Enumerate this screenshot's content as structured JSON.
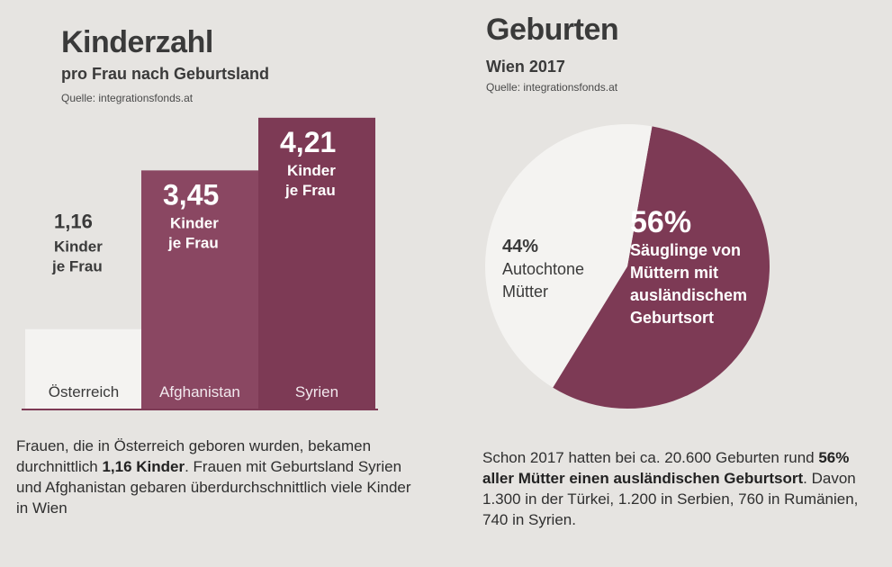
{
  "left": {
    "title": "Kinderzahl",
    "subtitle": "pro Frau nach Geburtsland",
    "source": "Quelle: integrationsfonds.at",
    "note": {
      "part1": "Frauen, die in Österreich geboren wurden, bekamen durchnittlich ",
      "bold1": "1,16 Kinder",
      "part2": ". Frauen mit Geburtsland Syrien und Afghanistan gebaren überdurchschnittlich viele Kinder in Wien"
    }
  },
  "right": {
    "title": "Geburten",
    "subtitle": "Wien 2017",
    "source": "Quelle: integrationsfonds.at",
    "note": {
      "part1": "Schon 2017 hatten bei ca. 20.600 Geburten rund ",
      "bold1": "56% aller Mütter einen ausländischen Geburtsort",
      "part2": ". Davon 1.300 in der Türkei, 1.200 in Serbien, 760 in Rumänien, 740 in Syrien."
    }
  },
  "chart_data": [
    {
      "type": "bar",
      "title": "Kinderzahl",
      "subtitle": "pro Frau nach Geburtsland",
      "categories": [
        "Österreich",
        "Afghanistan",
        "Syrien"
      ],
      "values": [
        1.16,
        3.45,
        4.21
      ],
      "value_labels": [
        "1,16",
        "3,45",
        "4,21"
      ],
      "unit_label_line1": "Kinder",
      "unit_label_line2": "je Frau",
      "colors": [
        "#f4f3f1",
        "#8a4762",
        "#7d3a55"
      ]
    },
    {
      "type": "pie",
      "title": "Geburten",
      "subtitle": "Wien 2017",
      "slices": [
        {
          "value": 56,
          "label_pct": "56%",
          "label_lines": [
            "Säuglinge von",
            "Müttern mit",
            "ausländischem",
            "Geburtsort"
          ],
          "color": "#7d3a55"
        },
        {
          "value": 44,
          "label_pct": "44%",
          "label_lines": [
            "Autochtone",
            "Mütter"
          ],
          "color": "#f4f3f1"
        }
      ]
    }
  ]
}
